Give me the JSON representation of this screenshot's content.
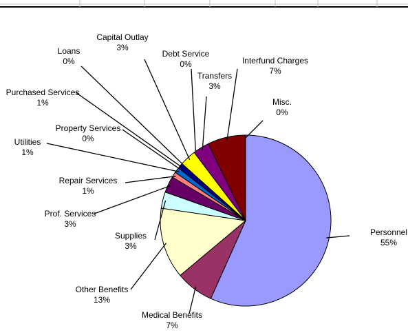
{
  "chart_data": {
    "type": "pie",
    "categories": [
      "Personnel",
      "Medical Benefits",
      "Other Benefits",
      "Supplies",
      "Prof. Services",
      "Repair Services",
      "Utilities",
      "Property Services",
      "Purchased Services",
      "Loans",
      "Capital Outlay",
      "Debt Service",
      "Transfers",
      "Interfund Charges",
      "Misc."
    ],
    "values": [
      55,
      7,
      13,
      3,
      3,
      1,
      1,
      0,
      1,
      0,
      3,
      0,
      3,
      7,
      0
    ],
    "value_labels": [
      "55%",
      "7%",
      "13%",
      "3%",
      "3%",
      "1%",
      "1%",
      "0%",
      "1%",
      "0%",
      "3%",
      "0%",
      "3%",
      "7%",
      "0%"
    ],
    "colors": [
      "#9999ff",
      "#993366",
      "#ffffcc",
      "#ccffff",
      "#660066",
      "#ff8080",
      "#0066cc",
      "#ccccff",
      "#000080",
      "#ff00ff",
      "#ffff00",
      "#00ffff",
      "#800080",
      "#800000",
      "#008080"
    ]
  }
}
